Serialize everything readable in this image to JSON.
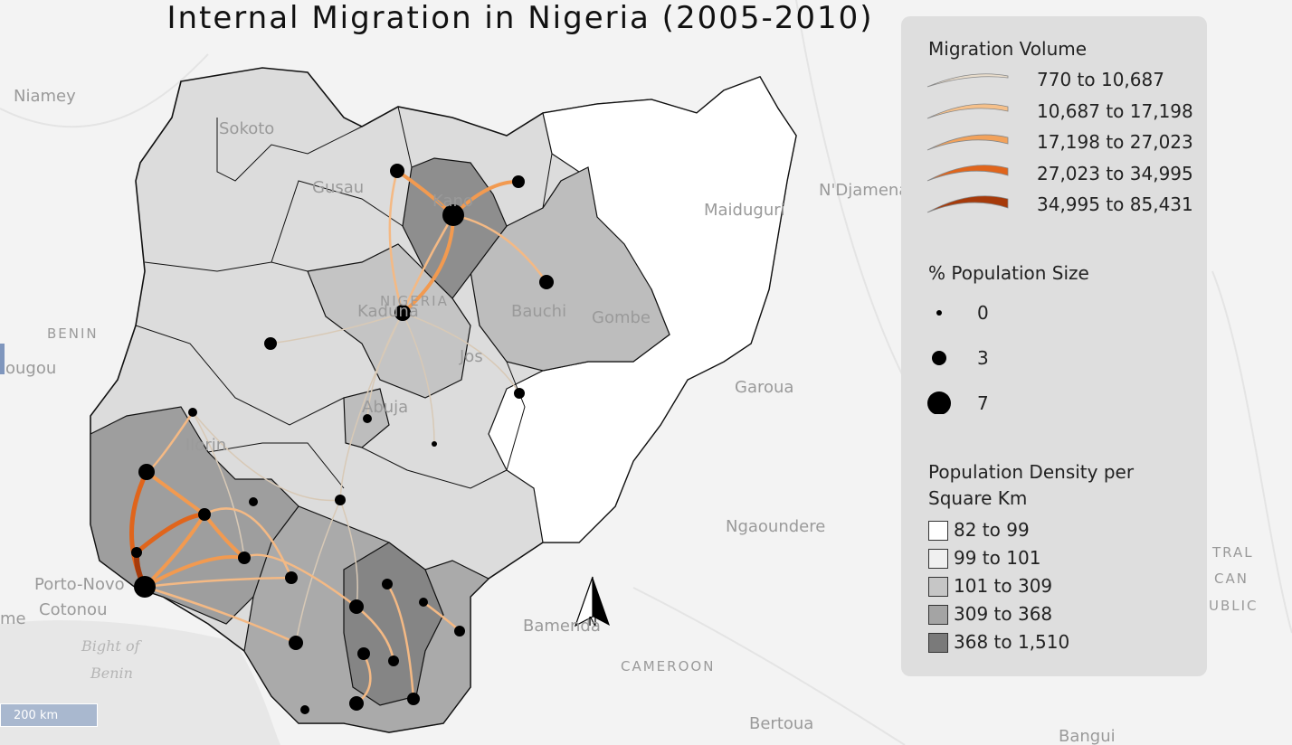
{
  "title": "Internal Migration in Nigeria (2005-2010)",
  "legend": {
    "migration_volume": {
      "title": "Migration Volume",
      "items": [
        "770 to 10,687",
        "10,687 to 17,198",
        "17,198 to 27,023",
        "27,023 to 34,995",
        "34,995 to 85,431"
      ]
    },
    "population_size": {
      "title": "% Population Size",
      "items": [
        "0",
        "3",
        "7"
      ]
    },
    "population_density": {
      "title": "Population Density per Square Km",
      "items": [
        "82 to 99",
        "99 to 101",
        "101 to 309",
        "309 to 368",
        "368 to 1,510"
      ]
    }
  },
  "map_labels": [
    "Niamey",
    "Sokoto",
    "Gusau",
    "Kano",
    "Maiduguri",
    "N'Djamena",
    "BENIN",
    "ougou",
    "Kaduna",
    "Bauchi",
    "Gombe",
    "NIGERIA",
    "Jos",
    "Abuja",
    "Ilorin",
    "Garoua",
    "Ngaoundere",
    "Porto-Novo",
    "Cotonou",
    "me",
    "Bight of",
    "Benin",
    "CAMEROON",
    "Bamenda",
    "Bertoua",
    "Bangui",
    "TRAL",
    "CAN",
    "UBLIC"
  ],
  "scale_bar": "200 km",
  "north_arrow": "N"
}
